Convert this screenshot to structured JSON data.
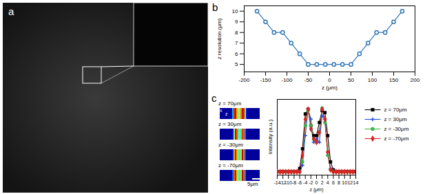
{
  "image_panel": {
    "label": "a"
  },
  "chart_data": [
    {
      "panel": "b",
      "type": "line",
      "x": [
        -170,
        -150,
        -130,
        -110,
        -90,
        -70,
        -50,
        -30,
        -10,
        10,
        30,
        50,
        70,
        90,
        110,
        130,
        150,
        170
      ],
      "values": [
        10,
        9,
        8,
        8,
        7,
        6,
        5,
        5,
        5,
        5,
        5,
        5,
        6,
        7,
        8,
        8,
        9,
        10
      ],
      "color": "#2e75b6",
      "marker": "circle",
      "xlabel": "z (μm)",
      "ylabel": "z resolution (μm)",
      "xlim": [
        -200,
        200
      ],
      "xticks": [
        -200,
        -150,
        -100,
        -50,
        0,
        50,
        100,
        150,
        200
      ],
      "ylim": [
        4.3,
        10.5
      ],
      "yticks": [
        5,
        6,
        7,
        8,
        9,
        10
      ]
    },
    {
      "panel": "c",
      "type": "line",
      "x": [
        -14,
        -13,
        -12,
        -11,
        -10,
        -9,
        -8,
        -7,
        -6,
        -5,
        -4,
        -3,
        -2,
        -1,
        0,
        1,
        2,
        3,
        4,
        5,
        6,
        7,
        8,
        9,
        10,
        11,
        12,
        13,
        14
      ],
      "series": [
        {
          "name": "z = 70μm",
          "color": "#000000",
          "marker": "square",
          "values": [
            0,
            0,
            0,
            0,
            0,
            0,
            0,
            0,
            0.05,
            0.35,
            0.88,
            0.95,
            0.7,
            0.55,
            0.55,
            0.75,
            0.93,
            0.9,
            0.55,
            0.15,
            0.03,
            0,
            0,
            0,
            0,
            0,
            0,
            0,
            0
          ]
        },
        {
          "name": "z = 30μm",
          "color": "#1f4fd8",
          "marker": "plus",
          "values": [
            0,
            0,
            0,
            0,
            0,
            0,
            0,
            0,
            0,
            0.1,
            0.55,
            0.95,
            0.8,
            0.45,
            0.5,
            0.45,
            0.85,
            0.8,
            0.3,
            0.05,
            0,
            0,
            0,
            0,
            0,
            0,
            0,
            0,
            0
          ]
        },
        {
          "name": "z = -30μm",
          "color": "#3cb44b",
          "marker": "circle",
          "values": [
            0,
            0,
            0,
            0,
            0,
            0,
            0,
            0,
            0,
            0.15,
            0.7,
            0.93,
            0.7,
            0.5,
            0.45,
            0.6,
            0.97,
            0.75,
            0.25,
            0.03,
            0,
            0,
            0,
            0,
            0,
            0,
            0,
            0,
            0
          ]
        },
        {
          "name": "z = -70μm",
          "color": "#e02020",
          "marker": "diamond",
          "values": [
            0,
            0,
            0,
            0,
            0,
            0,
            0,
            0,
            0,
            0.25,
            0.8,
            0.95,
            0.65,
            0.5,
            0.45,
            0.6,
            0.95,
            0.8,
            0.3,
            0.03,
            0,
            0,
            0,
            0,
            0,
            0,
            0,
            0,
            0
          ]
        }
      ],
      "xlabel": "z (μm)",
      "ylabel": "Intensity (a.u.)",
      "xlim": [
        -14,
        14
      ],
      "xticks": [
        -14,
        -12,
        -10,
        -8,
        -6,
        -4,
        -2,
        0,
        2,
        4,
        6,
        8,
        10,
        12,
        14
      ],
      "ylim": [
        -0.05,
        1.1
      ],
      "tick_labels": "x",
      "legend": "right",
      "inset_axes": [
        "x",
        "z"
      ],
      "scale_bar": {
        "value": 5,
        "label": "5μm"
      }
    }
  ]
}
